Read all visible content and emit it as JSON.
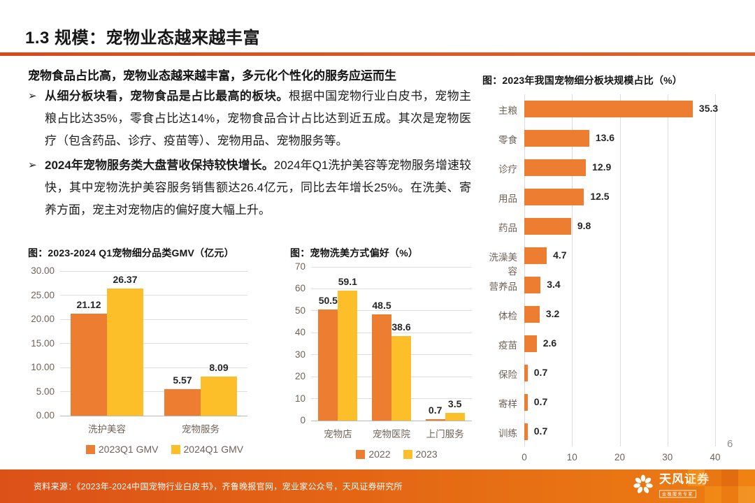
{
  "page": {
    "title": "1.3 规模：宠物业态越来越丰富",
    "page_number": "6",
    "footer_source": "资料来源：《2023年-2024中国宠物行业白皮书》，齐鲁晚报官网，宠业家公众号，天风证券研究所",
    "logo": {
      "name": "天风证券",
      "tagline": "金融服务专家"
    }
  },
  "summary": {
    "headline": "宠物食品占比高，宠物业态越来越丰富，多元化个性化的服务应运而生",
    "bullet_marker": "➢",
    "bullets": [
      {
        "bold": "从细分板块看，宠物食品是占比最高的板块。",
        "rest": "根据中国宠物行业白皮书，宠物主粮占比达35%，零食占比达14%，宠物食品合计占比达到近五成。其次是宠物医疗（包含药品、诊疗、疫苗等）、宠物用品、宠物服务等。"
      },
      {
        "bold": "2024年宠物服务类大盘营收保持较快增长。",
        "rest": "2024年Q1洗护美容等宠物服务增速较快，其中宠物洗护美容服务销售额达26.4亿元，同比去年增长25%。在洗美、寄养方面，宠主对宠物店的偏好度大幅上升。"
      }
    ]
  },
  "colors": {
    "orange": "#ED7D31",
    "yellow": "#FCBF2A",
    "rule_orange": "#DC5526",
    "axis_text": "#6F6358",
    "label_text": "#262626"
  },
  "chart_data": [
    {
      "id": "gmv",
      "type": "bar",
      "title": "图：2023-2024 Q1宠物细分品类GMV（亿元）",
      "categories": [
        "洗护美容",
        "宠物服务"
      ],
      "series": [
        {
          "name": "2023Q1 GMV",
          "color": "#ED7D31",
          "values": [
            21.12,
            5.57
          ],
          "labels": [
            "21.12",
            "5.57"
          ]
        },
        {
          "name": "2024Q1 GMV",
          "color": "#FCBF2A",
          "values": [
            26.37,
            8.09
          ],
          "labels": [
            "26.37",
            "8.09"
          ]
        }
      ],
      "ylim": [
        0,
        30
      ],
      "yticks": [
        0,
        5,
        10,
        15,
        20,
        25,
        30
      ],
      "ytick_labels": [
        "0.00",
        "5.00",
        "10.00",
        "15.00",
        "20.00",
        "25.00",
        "30.00"
      ],
      "grid": true,
      "legend_position": "bottom"
    },
    {
      "id": "groom",
      "type": "bar",
      "title": "图：宠物洗美方式偏好（%）",
      "categories": [
        "宠物店",
        "宠物医院",
        "上门服务"
      ],
      "series": [
        {
          "name": "2022",
          "color": "#ED7D31",
          "values": [
            50.5,
            48.5,
            0.7
          ],
          "labels": [
            "50.5",
            "48.5",
            "0.7"
          ]
        },
        {
          "name": "2023",
          "color": "#FCBF2A",
          "values": [
            59.1,
            38.6,
            3.5
          ],
          "labels": [
            "59.1",
            "38.6",
            "3.5"
          ]
        }
      ],
      "ylim": [
        0,
        70
      ],
      "yticks": [
        0,
        10,
        20,
        30,
        40,
        50,
        60,
        70
      ],
      "ytick_labels": [
        "0",
        "10",
        "20",
        "30",
        "40",
        "50",
        "60",
        "70"
      ],
      "grid": true,
      "legend_position": "bottom"
    },
    {
      "id": "segments",
      "type": "bar-horizontal",
      "title": "图：2023年我国宠物细分板块规模占比（%）",
      "categories": [
        "主粮",
        "零食",
        "诊疗",
        "用品",
        "药品",
        "洗澡美容",
        "营养品",
        "体检",
        "疫苗",
        "保险",
        "寄样",
        "训练"
      ],
      "values": [
        35.3,
        13.6,
        12.9,
        12.5,
        9.8,
        4.7,
        3.4,
        3.2,
        2.6,
        0.7,
        0.7,
        0.7
      ],
      "labels": [
        "35.3",
        "13.6",
        "12.9",
        "12.5",
        "9.8",
        "4.7",
        "3.4",
        "3.2",
        "2.6",
        "0.7",
        "0.7",
        "0.7"
      ],
      "color": "#ED7D31",
      "xlim": [
        0,
        40
      ],
      "xticks": [
        0,
        10,
        20,
        30,
        40
      ],
      "xtick_labels": [
        "0",
        "10",
        "20",
        "30",
        "40"
      ],
      "grid": true,
      "legend_position": "none"
    }
  ]
}
